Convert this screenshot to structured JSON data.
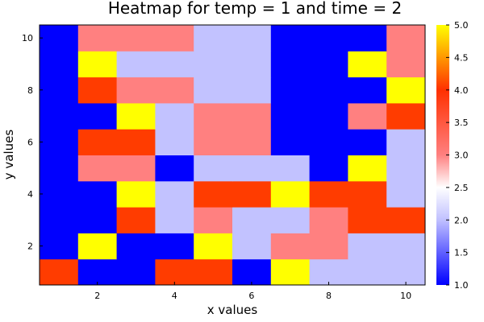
{
  "chart_data": {
    "type": "heatmap",
    "title": "Heatmap for temp = 1 and time = 2",
    "xlabel": "x values",
    "ylabel": "y values",
    "x_ticks": [
      "2",
      "4",
      "6",
      "8",
      "10"
    ],
    "y_ticks": [
      "2",
      "4",
      "6",
      "8",
      "10"
    ],
    "x_range": [
      0.5,
      10.5
    ],
    "y_range": [
      0.5,
      10.5
    ],
    "x": [
      1,
      2,
      3,
      4,
      5,
      6,
      7,
      8,
      9,
      10
    ],
    "y": [
      1,
      2,
      3,
      4,
      5,
      6,
      7,
      8,
      9,
      10
    ],
    "z": [
      [
        4,
        1,
        1,
        4,
        4,
        1,
        5,
        2,
        2,
        2
      ],
      [
        1,
        5,
        1,
        1,
        5,
        2,
        3,
        3,
        2,
        2
      ],
      [
        1,
        1,
        4,
        2,
        3,
        2,
        2,
        3,
        4,
        4
      ],
      [
        1,
        1,
        5,
        2,
        4,
        4,
        5,
        4,
        4,
        2
      ],
      [
        1,
        3,
        3,
        1,
        2,
        2,
        2,
        1,
        5,
        2
      ],
      [
        1,
        4,
        4,
        2,
        3,
        3,
        1,
        1,
        1,
        2
      ],
      [
        1,
        1,
        5,
        2,
        3,
        3,
        1,
        1,
        3,
        4
      ],
      [
        1,
        4,
        3,
        3,
        2,
        2,
        1,
        1,
        1,
        5
      ],
      [
        1,
        5,
        2,
        2,
        2,
        2,
        1,
        1,
        5,
        3
      ],
      [
        1,
        3,
        3,
        3,
        2,
        2,
        1,
        1,
        1,
        3
      ]
    ],
    "colorbar": {
      "range": [
        1.0,
        5.0
      ],
      "ticks": [
        "1.0",
        "1.5",
        "2.0",
        "2.5",
        "3.0",
        "3.5",
        "4.0",
        "4.5",
        "5.0"
      ],
      "tick_values": [
        1.0,
        1.5,
        2.0,
        2.5,
        3.0,
        3.5,
        4.0,
        4.5,
        5.0
      ],
      "color_stops": [
        {
          "value": 1.0,
          "color": "#0000ff"
        },
        {
          "value": 2.0,
          "color": "#c0c0ff"
        },
        {
          "value": 2.5,
          "color": "#ffffff"
        },
        {
          "value": 3.0,
          "color": "#ff8080"
        },
        {
          "value": 4.0,
          "color": "#ff3000"
        },
        {
          "value": 5.0,
          "color": "#ffff00"
        }
      ]
    },
    "cell_colors": {
      "1": "#0000ff",
      "2": "#c2c2ff",
      "3": "#ff8080",
      "4": "#ff3c00",
      "5": "#ffff00"
    },
    "grid": false
  }
}
